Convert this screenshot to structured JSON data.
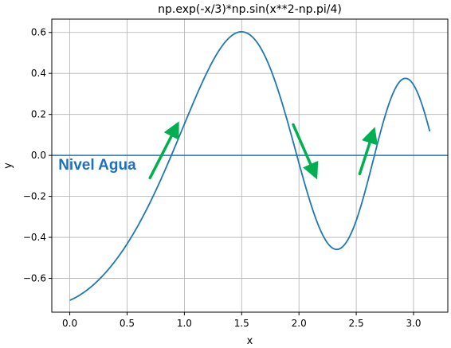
{
  "chart_data": {
    "type": "line",
    "title": "np.exp(-x/3)*np.sin(x**2-np.pi/4)",
    "xlabel": "x",
    "ylabel": "y",
    "xlim": [
      -0.157,
      3.299
    ],
    "ylim": [
      -0.765,
      0.665
    ],
    "grid": true,
    "xticks": [
      0.0,
      0.5,
      1.0,
      1.5,
      2.0,
      2.5,
      3.0
    ],
    "xtick_labels": [
      "0.0",
      "0.5",
      "1.0",
      "1.5",
      "2.0",
      "2.5",
      "3.0"
    ],
    "yticks": [
      -0.6,
      -0.4,
      -0.2,
      0.0,
      0.2,
      0.4,
      0.6
    ],
    "ytick_labels": [
      "−0.6",
      "−0.4",
      "−0.2",
      "0.0",
      "0.2",
      "0.4",
      "0.6"
    ],
    "series": [
      {
        "function": "exp(-x/3)*sin(x^2-pi/4)",
        "x_range": [
          0,
          3.14159
        ],
        "color": "#1f77b4"
      }
    ],
    "hline": {
      "y": 0.0,
      "color": "#1f77b4"
    },
    "annotations": [
      {
        "text": "Nivel Agua",
        "x": -0.1,
        "y": -0.07,
        "color": "#1f6fc0"
      }
    ],
    "arrows": [
      {
        "from": [
          0.7,
          -0.11
        ],
        "to": [
          0.92,
          0.13
        ],
        "color": "#00b050"
      },
      {
        "from": [
          1.95,
          0.15
        ],
        "to": [
          2.13,
          -0.08
        ],
        "color": "#00b050"
      },
      {
        "from": [
          2.53,
          -0.09
        ],
        "to": [
          2.64,
          0.1
        ],
        "color": "#00b050"
      }
    ]
  }
}
